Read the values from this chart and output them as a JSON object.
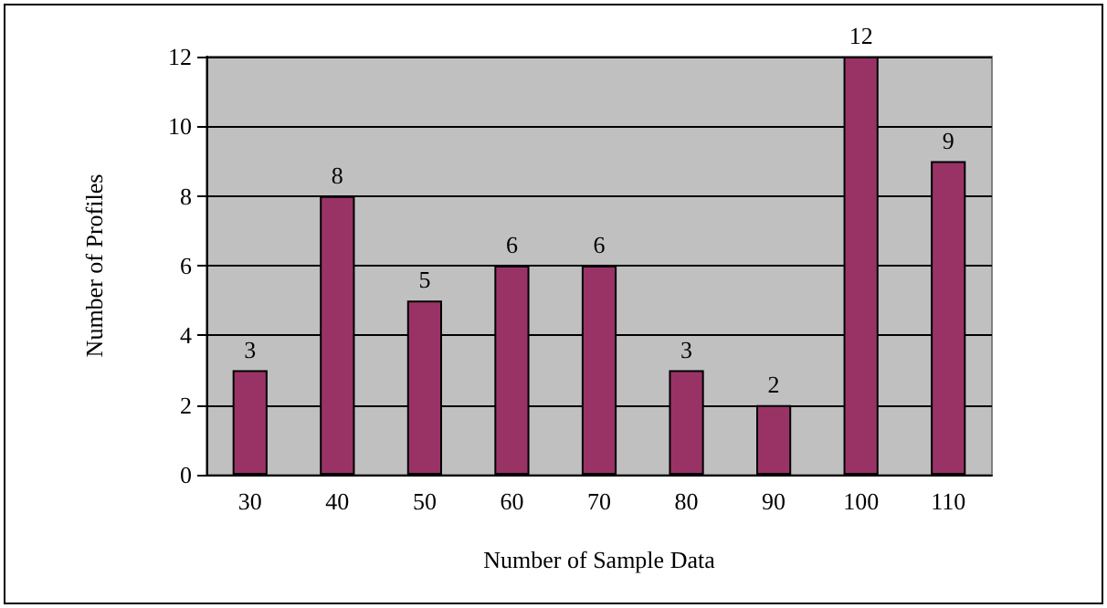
{
  "chart_data": {
    "type": "bar",
    "xlabel": "Number of Sample Data",
    "ylabel": "Number of Profiles",
    "categories": [
      "30",
      "40",
      "50",
      "60",
      "70",
      "80",
      "90",
      "100",
      "110"
    ],
    "values": [
      3,
      8,
      5,
      6,
      6,
      3,
      2,
      12,
      9
    ],
    "color": "#993366",
    "ylim": [
      0,
      12
    ],
    "yticks": [
      0,
      2,
      4,
      6,
      8,
      10,
      12
    ],
    "grid": "y",
    "data_labels": true
  }
}
